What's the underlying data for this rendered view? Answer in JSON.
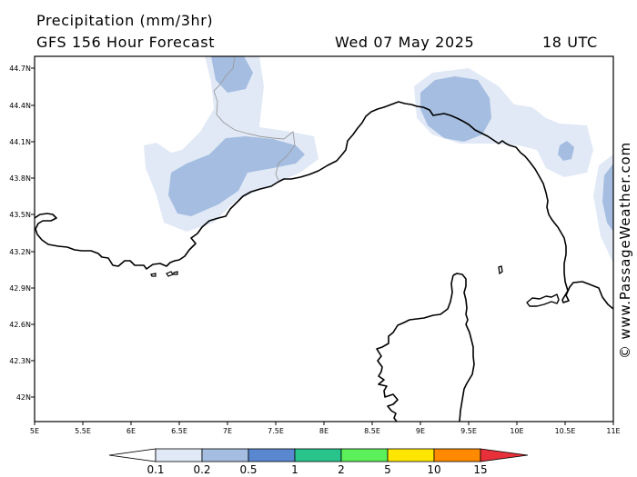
{
  "header": {
    "title": "Precipitation (mm/3hr)",
    "model": "GFS 156 Hour Forecast",
    "date": "Wed 07 May 2025",
    "time": "18 UTC"
  },
  "credit": "© www.PassageWeather.com",
  "map": {
    "lat_labels": [
      "44.7N",
      "44.4N",
      "44.1N",
      "43.8N",
      "43.5N",
      "43.2N",
      "42.9N",
      "42.6N",
      "42.3N",
      "42N"
    ],
    "lon_labels": [
      "5E",
      "5.5E",
      "6E",
      "6.5E",
      "7E",
      "7.5E",
      "8E",
      "8.5E",
      "9E",
      "9.5E",
      "10E",
      "10.5E",
      "11E"
    ]
  },
  "legend": {
    "labels": [
      "0.1",
      "0.2",
      "0.5",
      "1",
      "2",
      "5",
      "10",
      "15"
    ],
    "colors": [
      "#ffffff",
      "#e1e9f7",
      "#a4bde0",
      "#5a88d0",
      "#28c48c",
      "#5cf05a",
      "#ffe600",
      "#ff8a00",
      "#e8303a"
    ]
  }
}
